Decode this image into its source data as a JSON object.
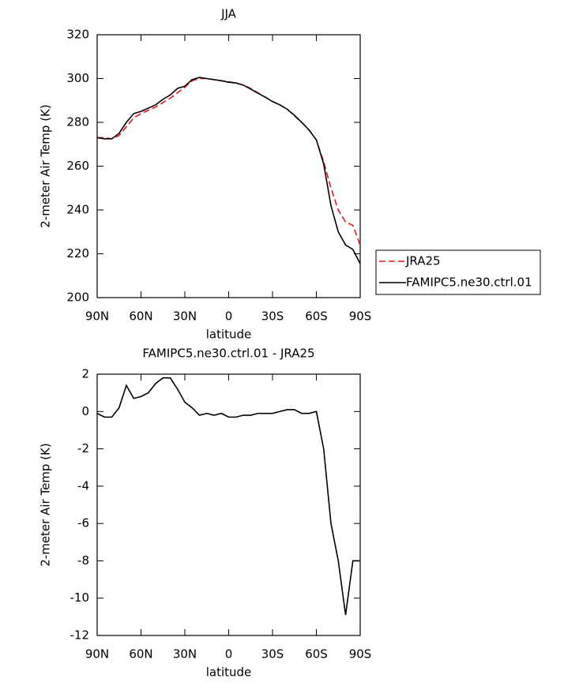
{
  "chart_data": [
    {
      "type": "line",
      "title": "JJA",
      "x_label": "latitude",
      "y_label": "2-meter Air Temp (K)",
      "x": [
        90,
        85,
        80,
        75,
        70,
        65,
        60,
        55,
        50,
        45,
        40,
        35,
        30,
        25,
        20,
        15,
        10,
        5,
        0,
        -5,
        -10,
        -15,
        -20,
        -25,
        -30,
        -35,
        -40,
        -45,
        -50,
        -55,
        -60,
        -65,
        -70,
        -75,
        -80,
        -85,
        -90
      ],
      "xlim": [
        90,
        -90
      ],
      "xticks": [
        {
          "value": 90,
          "label": "90N"
        },
        {
          "value": 60,
          "label": "60N"
        },
        {
          "value": 30,
          "label": "30N"
        },
        0,
        {
          "value": -30,
          "label": "30S"
        },
        {
          "value": -60,
          "label": "60S"
        },
        {
          "value": -90,
          "label": "90S"
        }
      ],
      "ylim": [
        200,
        320
      ],
      "yticks": [
        200,
        220,
        240,
        260,
        280,
        300,
        320
      ],
      "legend": "right",
      "series": [
        {
          "name": "JRA25",
          "color": "#e8141e",
          "dash": "dashed",
          "values": [
            273,
            273,
            272.5,
            274,
            278,
            282,
            284,
            285.5,
            287,
            289,
            291,
            293.5,
            296,
            299,
            300,
            300,
            299.5,
            299,
            298.5,
            298,
            297,
            295.5,
            293.5,
            291.5,
            289.5,
            288,
            286,
            283,
            280,
            276.5,
            272,
            262,
            250,
            240,
            234.5,
            233,
            224
          ]
        },
        {
          "name": "FAMIPC5.ne30.ctrl.01",
          "color": "#000000",
          "dash": "solid",
          "values": [
            273,
            272.5,
            272.5,
            275,
            280,
            284,
            285,
            286.5,
            288,
            290.5,
            292.5,
            295.5,
            296.5,
            299.5,
            300.5,
            300,
            299.5,
            299,
            298.3,
            298,
            297,
            295.2,
            293.3,
            291.5,
            289.5,
            288,
            286,
            283.2,
            280,
            276.5,
            272,
            261,
            242,
            230,
            224,
            222,
            215.5
          ]
        }
      ]
    },
    {
      "type": "line",
      "title": "FAMIPC5.ne30.ctrl.01 - JRA25",
      "x_label": "latitude",
      "y_label": "2-meter Air Temp (K)",
      "x": [
        90,
        85,
        80,
        75,
        70,
        65,
        60,
        55,
        50,
        45,
        40,
        35,
        30,
        25,
        20,
        15,
        10,
        5,
        0,
        -5,
        -10,
        -15,
        -20,
        -25,
        -30,
        -35,
        -40,
        -45,
        -50,
        -55,
        -60,
        -65,
        -70,
        -75,
        -80,
        -85,
        -90
      ],
      "xlim": [
        90,
        -90
      ],
      "xticks": [
        {
          "value": 90,
          "label": "90N"
        },
        {
          "value": 60,
          "label": "60N"
        },
        {
          "value": 30,
          "label": "30N"
        },
        0,
        {
          "value": -30,
          "label": "30S"
        },
        {
          "value": -60,
          "label": "60S"
        },
        {
          "value": -90,
          "label": "90S"
        }
      ],
      "ylim": [
        -12,
        2
      ],
      "yticks": [
        -12,
        -10,
        -8,
        -6,
        -4,
        -2,
        0,
        2
      ],
      "color": "#000000",
      "values": [
        -0.1,
        -0.3,
        -0.3,
        0.2,
        1.4,
        0.7,
        0.8,
        1.0,
        1.5,
        1.8,
        1.8,
        1.2,
        0.5,
        0.2,
        -0.2,
        -0.1,
        -0.2,
        -0.1,
        -0.3,
        -0.3,
        -0.2,
        -0.2,
        -0.1,
        -0.1,
        -0.1,
        0,
        0.1,
        0.1,
        -0.1,
        -0.1,
        0,
        -2,
        -6,
        -8,
        -10.9,
        -8,
        -8
      ]
    }
  ]
}
